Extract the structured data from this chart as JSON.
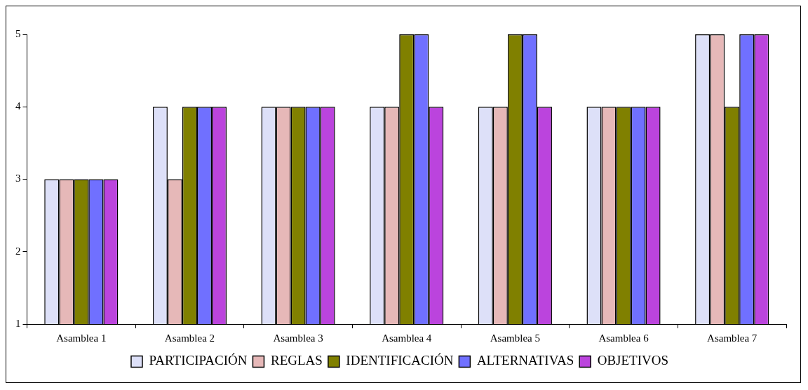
{
  "chart_data": {
    "type": "bar",
    "categories": [
      "Asamblea 1",
      "Asamblea 2",
      "Asamblea 3",
      "Asamblea 4",
      "Asamblea 5",
      "Asamblea 6",
      "Asamblea 7"
    ],
    "series": [
      {
        "name": "PARTICIPACIÓN",
        "color": "#dde0f8",
        "values": [
          3,
          4,
          4,
          4,
          4,
          4,
          5
        ]
      },
      {
        "name": "REGLAS",
        "color": "#e6b8b8",
        "values": [
          3,
          3,
          4,
          4,
          4,
          4,
          5
        ]
      },
      {
        "name": "IDENTIFICACIÓN",
        "color": "#808000",
        "values": [
          3,
          4,
          4,
          5,
          5,
          4,
          4
        ]
      },
      {
        "name": "ALTERNATIVAS",
        "color": "#7070ff",
        "values": [
          3,
          4,
          4,
          5,
          5,
          4,
          5
        ]
      },
      {
        "name": "OBJETIVOS",
        "color": "#bb44dd",
        "values": [
          3,
          4,
          4,
          4,
          4,
          4,
          5
        ]
      }
    ],
    "ylim": [
      1,
      5
    ],
    "yticks": [
      1,
      2,
      3,
      4,
      5
    ],
    "grid": false,
    "legend": "bottom"
  }
}
